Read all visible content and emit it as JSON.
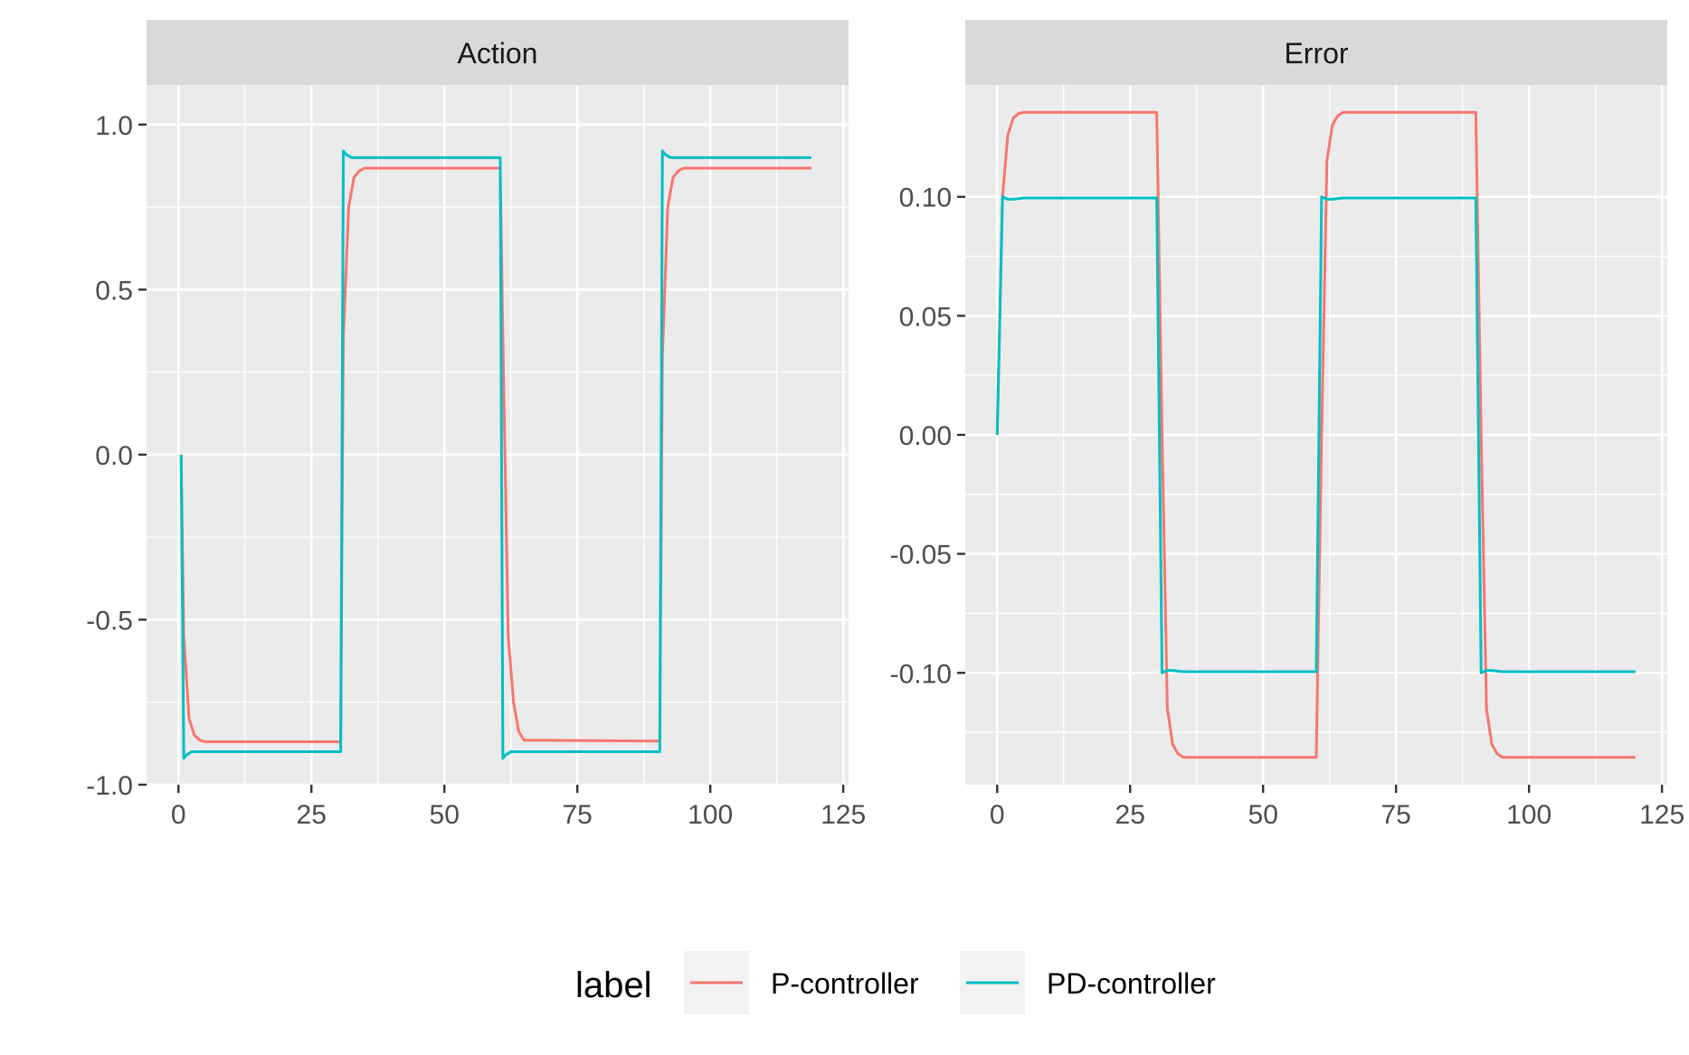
{
  "colors": {
    "p_controller": "#F8766D",
    "pd_controller": "#00BFC4",
    "panel_bg": "#EBEBEB",
    "strip_bg": "#D9D9D9",
    "grid": "#FFFFFF"
  },
  "legend": {
    "title": "label",
    "entries": [
      {
        "label": "P-controller",
        "color": "#F8766D"
      },
      {
        "label": "PD-controller",
        "color": "#00BFC4"
      }
    ]
  },
  "chart_data": [
    {
      "type": "line",
      "title": "Action",
      "xlabel": "",
      "ylabel": "",
      "xlim": [
        -6,
        126
      ],
      "ylim": [
        -1.0,
        1.12
      ],
      "x_ticks": [
        0,
        25,
        50,
        75,
        100,
        125
      ],
      "x_tick_labels": [
        "0",
        "25",
        "50",
        "75",
        "100",
        "125"
      ],
      "y_ticks": [
        -1.0,
        -0.5,
        0.0,
        0.5,
        1.0
      ],
      "y_tick_labels": [
        "-1.0",
        "-0.5",
        "0.0",
        "0.5",
        "1.0"
      ],
      "series": [
        {
          "name": "P-controller",
          "color": "#F8766D",
          "x": [
            0.5,
            1,
            2,
            3,
            4,
            5,
            30.5,
            31,
            32,
            33,
            34,
            35,
            60.5,
            61,
            62,
            63,
            64,
            65,
            90.5,
            91,
            92,
            93,
            94,
            95,
            119
          ],
          "y": [
            0,
            -0.55,
            -0.8,
            -0.85,
            -0.865,
            -0.87,
            -0.87,
            0.35,
            0.75,
            0.84,
            0.86,
            0.868,
            0.868,
            0.35,
            -0.55,
            -0.75,
            -0.84,
            -0.865,
            -0.868,
            0.3,
            0.75,
            0.84,
            0.86,
            0.868,
            0.868
          ]
        },
        {
          "name": "PD-controller",
          "color": "#00BFC4",
          "x": [
            0.5,
            1,
            1.5,
            2.5,
            5,
            30.5,
            31,
            31.5,
            32.5,
            35,
            60.5,
            61,
            61.5,
            62.5,
            65,
            90.5,
            91,
            91.5,
            92.5,
            95,
            119
          ],
          "y": [
            0,
            -0.92,
            -0.91,
            -0.9,
            -0.9,
            -0.9,
            0.92,
            0.91,
            0.9,
            0.9,
            0.9,
            -0.92,
            -0.91,
            -0.9,
            -0.9,
            -0.9,
            0.92,
            0.91,
            0.9,
            0.9,
            0.9
          ]
        }
      ]
    },
    {
      "type": "line",
      "title": "Error",
      "xlabel": "",
      "ylabel": "",
      "xlim": [
        -6,
        126
      ],
      "ylim": [
        -0.147,
        0.147
      ],
      "x_ticks": [
        0,
        25,
        50,
        75,
        100,
        125
      ],
      "x_tick_labels": [
        "0",
        "25",
        "50",
        "75",
        "100",
        "125"
      ],
      "y_ticks": [
        -0.1,
        -0.05,
        0.0,
        0.05,
        0.1
      ],
      "y_tick_labels": [
        "-0.10",
        "-0.05",
        "0.00",
        "0.05",
        "0.10"
      ],
      "series": [
        {
          "name": "P-controller",
          "color": "#F8766D",
          "x": [
            0,
            1,
            2,
            3,
            4,
            5,
            30,
            31,
            32,
            33,
            34,
            35,
            60,
            61,
            62,
            63,
            64,
            65,
            90,
            91,
            92,
            93,
            94,
            95,
            120
          ],
          "y": [
            0,
            0.1,
            0.126,
            0.133,
            0.135,
            0.1355,
            0.1355,
            0.0,
            -0.115,
            -0.13,
            -0.134,
            -0.1355,
            -0.1355,
            0.0,
            0.115,
            0.13,
            0.134,
            0.1355,
            0.1355,
            0.0,
            -0.115,
            -0.13,
            -0.134,
            -0.1355,
            -0.1355
          ]
        },
        {
          "name": "PD-controller",
          "color": "#00BFC4",
          "x": [
            0,
            1,
            2,
            3,
            5,
            30,
            31,
            32,
            33,
            35,
            60,
            61,
            62,
            63,
            65,
            90,
            91,
            92,
            93,
            95,
            120
          ],
          "y": [
            0,
            0.1,
            0.099,
            0.099,
            0.0995,
            0.0995,
            -0.1,
            -0.099,
            -0.099,
            -0.0995,
            -0.0995,
            0.1,
            0.099,
            0.099,
            0.0995,
            0.0995,
            -0.1,
            -0.099,
            -0.099,
            -0.0995,
            -0.0995
          ]
        }
      ]
    }
  ]
}
